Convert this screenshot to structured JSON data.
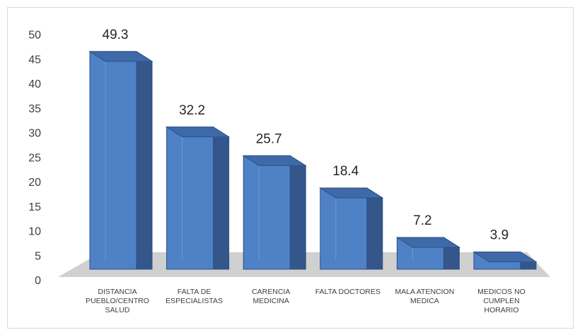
{
  "chart_data": {
    "type": "bar",
    "style": "3d-column",
    "categories": [
      [
        "DISTANCIA",
        "PUEBLO/CENTRO",
        "SALUD"
      ],
      [
        "FALTA DE",
        "ESPECIALISTAS"
      ],
      [
        "CARENCIA",
        "MEDICINA"
      ],
      [
        "FALTA DOCTORES"
      ],
      [
        "MALA ATENCION",
        "MEDICA"
      ],
      [
        "MEDICOS NO",
        "CUMPLEN",
        "HORARIO"
      ]
    ],
    "values": [
      49.3,
      32.2,
      25.7,
      18.4,
      7.2,
      3.9
    ],
    "value_labels": [
      "49.3",
      "32.2",
      "25.7",
      "18.4",
      "7.2",
      "3.9"
    ],
    "yticks": [
      "0",
      "5",
      "10",
      "15",
      "20",
      "25",
      "30",
      "35",
      "40",
      "45",
      "50"
    ],
    "ylim": [
      0,
      50
    ],
    "grid": false,
    "legend": "none",
    "colors": {
      "bar_front": "#4f81c7",
      "bar_side": "#34568a",
      "bar_top": "#3f6aa8",
      "bar_edge": "#2c4f86",
      "floor": "#d0d0d0"
    }
  }
}
